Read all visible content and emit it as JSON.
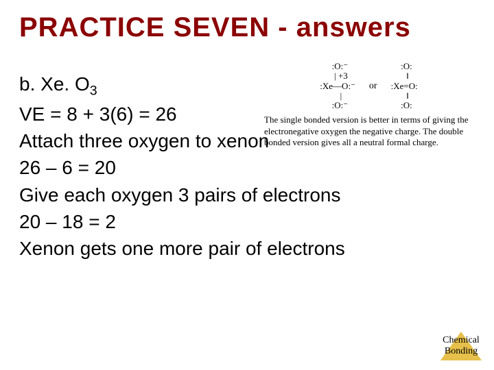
{
  "title": "PRACTICE SEVEN - answers",
  "body": {
    "line1a": "b. ",
    "line1b": "Xe. O",
    "line1sub": "3",
    "line2": "VE = 8 + 3(6) = 26",
    "line3": "Attach three oxygen to xenon",
    "line4": "26 – 6 = 20",
    "line5": "Give each oxygen 3 pairs of electrons",
    "line6": "20 – 18 = 2",
    "line7": "Xenon gets one more pair of electrons"
  },
  "figure": {
    "lewis1": "  :O:⁻\n   | +3\n:Xe—O:⁻\n   |\n  :O:⁻",
    "or": "or",
    "lewis2": "  :O:\n   ‖\n:Xe=O:\n   ‖\n  :O:",
    "caption": "The single bonded version is better in terms of giving the electronegative oxygen the negative charge. The double bonded version gives all a neutral formal charge."
  },
  "footer": {
    "line1": "Chemical",
    "line2": "Bonding"
  },
  "colors": {
    "title": "#8b0000",
    "body": "#000000",
    "triangle": "#e6c04a",
    "background": "#ffffff"
  }
}
